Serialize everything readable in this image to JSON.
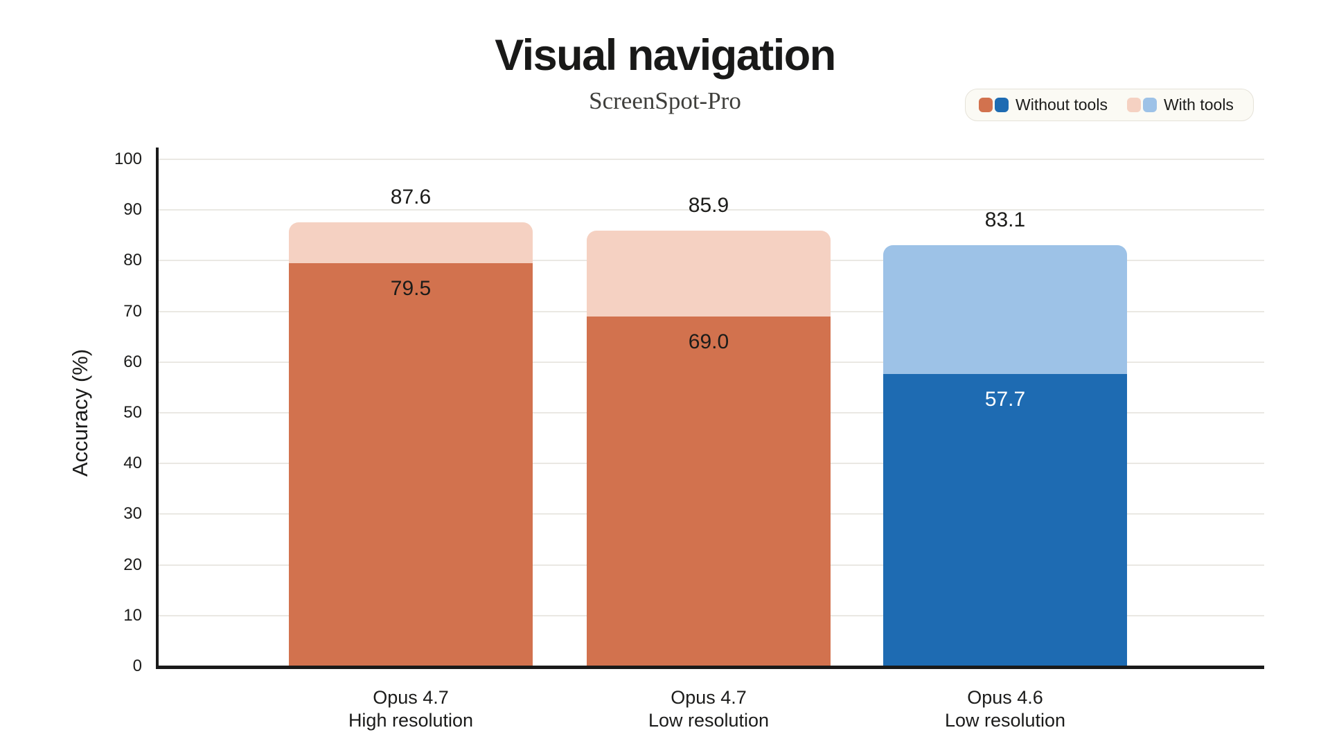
{
  "title": "Visual navigation",
  "subtitle": "ScreenSpot-Pro",
  "legend": {
    "items": [
      {
        "label": "Without tools",
        "swatches": [
          "#d2724e",
          "#1e6bb2"
        ]
      },
      {
        "label": "With tools",
        "swatches": [
          "#f5d1c2",
          "#9dc2e7"
        ]
      }
    ]
  },
  "chart_data": {
    "type": "bar",
    "title": "Visual navigation",
    "subtitle": "ScreenSpot-Pro",
    "xlabel": "",
    "ylabel": "Accuracy (%)",
    "ylim": [
      0,
      100
    ],
    "ytick_step": 10,
    "grid": true,
    "legend_position": "top-right",
    "categories": [
      {
        "line1": "Opus 4.7",
        "line2": "High resolution"
      },
      {
        "line1": "Opus 4.7",
        "line2": "Low resolution"
      },
      {
        "line1": "Opus 4.6",
        "line2": "Low resolution"
      }
    ],
    "series": [
      {
        "name": "Without tools",
        "values": [
          79.5,
          69.0,
          57.7
        ]
      },
      {
        "name": "With tools",
        "values": [
          87.6,
          85.9,
          83.1
        ]
      }
    ],
    "bar_styles": [
      {
        "without_color": "#d2724e",
        "with_color": "#f5d1c2",
        "without_label_color": "#1c1c1a",
        "with_label_color": "#1c1c1a"
      },
      {
        "without_color": "#d2724e",
        "with_color": "#f5d1c2",
        "without_label_color": "#1c1c1a",
        "with_label_color": "#1c1c1a"
      },
      {
        "without_color": "#1e6bb2",
        "with_color": "#9dc2e7",
        "without_label_color": "#ffffff",
        "with_label_color": "#1c1c1a"
      }
    ],
    "colors": {
      "grid": "#eae8e3",
      "axis": "#1a1a1a",
      "text": "#1c1c1a",
      "legend_background": "#fbfaf4",
      "legend_border": "#e5e2d8",
      "background": "#ffffff"
    }
  }
}
